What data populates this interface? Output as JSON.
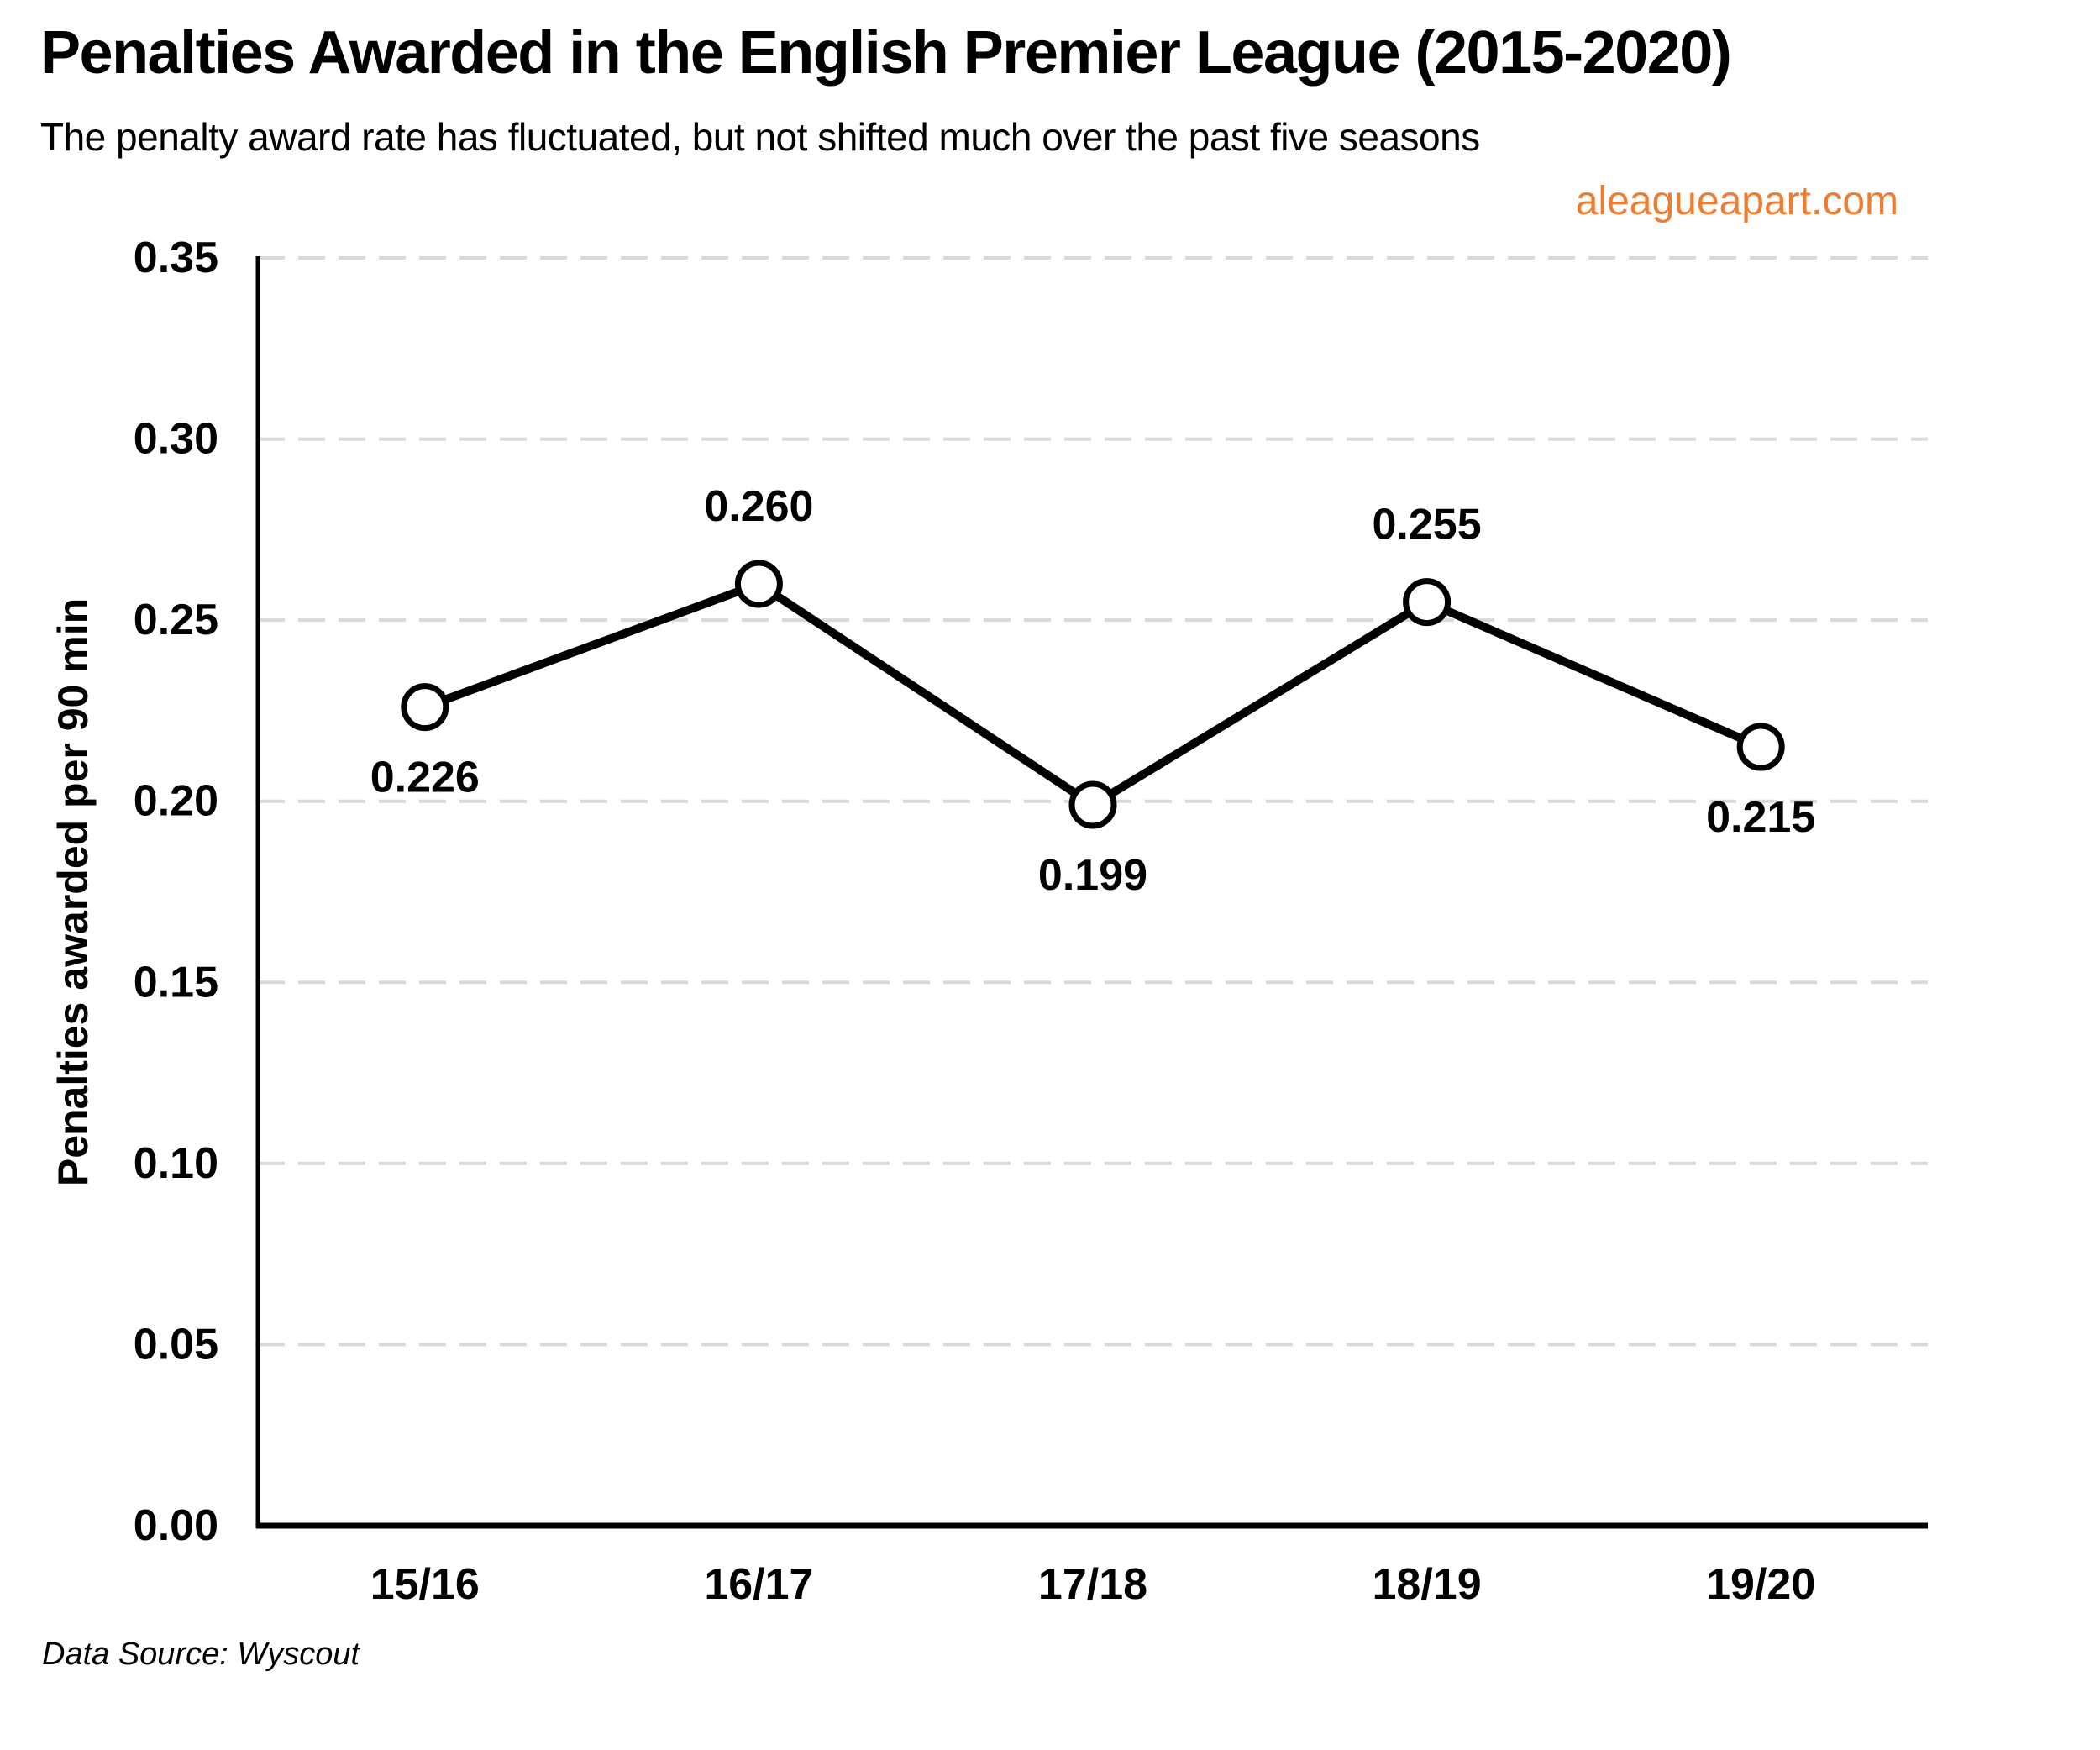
{
  "header": {
    "watermark": "aleagueapart.com"
  },
  "footer": {
    "source": "Data Source: Wyscout"
  },
  "colors": {
    "accent_orange": "#ED7D31",
    "gridline": "#D9D9D9",
    "line": "#000000",
    "marker_fill": "#FFFFFF",
    "text": "#000000"
  },
  "chart_data": {
    "type": "line",
    "title": "Penalties Awarded in the English Premier League (2015-2020)",
    "subtitle": "The penalty award rate has fluctuated, but not shifted much over the past five seasons",
    "categories": [
      "15/16",
      "16/17",
      "17/18",
      "18/19",
      "19/20"
    ],
    "values": [
      0.226,
      0.26,
      0.199,
      0.255,
      0.215
    ],
    "value_labels": [
      "0.226",
      "0.260",
      "0.199",
      "0.255",
      "0.215"
    ],
    "label_positions": [
      "below",
      "above",
      "below",
      "above",
      "below"
    ],
    "xlabel": "",
    "ylabel": "Penalties awarded per 90 min",
    "ylim": [
      0,
      0.35
    ],
    "ytick_step": 0.05,
    "ytick_labels": [
      "0.00",
      "0.05",
      "0.10",
      "0.15",
      "0.20",
      "0.25",
      "0.30",
      "0.35"
    ],
    "grid": "dashed-horizontal",
    "legend": "none"
  }
}
